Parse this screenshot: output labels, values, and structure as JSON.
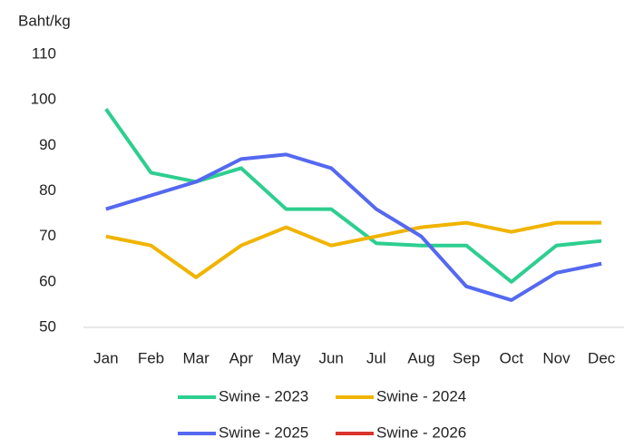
{
  "chart_data": {
    "type": "line",
    "y_axis_label": "Baht/kg",
    "categories": [
      "Jan",
      "Feb",
      "Mar",
      "Apr",
      "May",
      "Jun",
      "Jul",
      "Aug",
      "Sep",
      "Oct",
      "Nov",
      "Dec"
    ],
    "series": [
      {
        "name": "Swine - 2023",
        "color": "#2dce8f",
        "values": [
          98,
          84,
          82,
          85,
          76,
          76,
          68.5,
          68,
          68,
          60,
          68,
          69
        ]
      },
      {
        "name": "Swine - 2024",
        "color": "#f0b400",
        "values": [
          70,
          68,
          61,
          68,
          72,
          68,
          70,
          72,
          73,
          71,
          73,
          73
        ]
      },
      {
        "name": "Swine - 2025",
        "color": "#5468f0",
        "values": [
          76,
          79,
          82,
          87,
          88,
          85,
          76,
          70,
          59,
          56,
          62,
          64
        ]
      },
      {
        "name": "Swine - 2026",
        "color": "#d9342b",
        "values": [
          null,
          null,
          null,
          null,
          null,
          null,
          null,
          null,
          null,
          null,
          null,
          null
        ]
      }
    ],
    "ylim": [
      50,
      110
    ],
    "yticks": [
      50,
      60,
      70,
      80,
      90,
      100,
      110
    ],
    "grid": false
  }
}
